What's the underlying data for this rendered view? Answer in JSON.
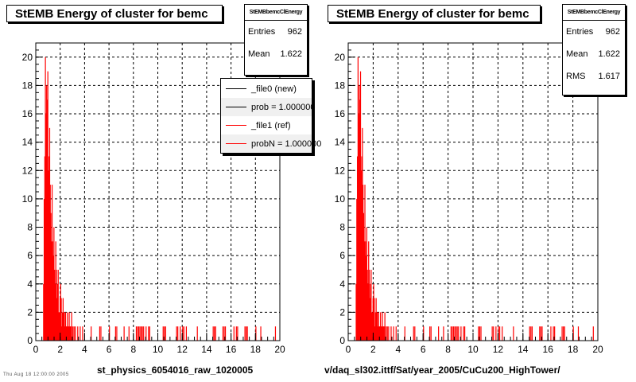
{
  "chart_data": [
    {
      "type": "bar",
      "title": "StEMB Energy of cluster for bemc",
      "xlabel": "st_physics_6054016_raw_1020005",
      "ylabel": "",
      "xlim": [
        0,
        20
      ],
      "ylim": [
        0,
        21
      ],
      "x_ticks": [
        "0",
        "2",
        "4",
        "6",
        "8",
        "10",
        "12",
        "14",
        "16",
        "18",
        "20"
      ],
      "y_ticks": [
        "0",
        "2",
        "4",
        "6",
        "8",
        "10",
        "12",
        "14",
        "16",
        "18",
        "20"
      ],
      "grid": true,
      "legend_position": "top-right",
      "stats": {
        "header": "StEMBbemcClEnergy",
        "rows": [
          {
            "label": "Entries",
            "value": "962"
          },
          {
            "label": "Mean",
            "value": "1.622"
          }
        ]
      },
      "legend": [
        {
          "label": "_file0 (new)",
          "color": "#000000"
        },
        {
          "label": "prob = 1.000000",
          "color": "#000000"
        },
        {
          "label": "_file1 (ref)",
          "color": "#ff0000"
        },
        {
          "label": "probN = 1.000000",
          "color": "#ff0000"
        }
      ],
      "bin_width": 0.05,
      "series": [
        {
          "name": "_file1 (ref)",
          "color": "#ff0000",
          "x": [
            0.6,
            0.65,
            0.7,
            0.75,
            0.8,
            0.85,
            0.9,
            0.95,
            1.0,
            1.05,
            1.1,
            1.15,
            1.2,
            1.25,
            1.3,
            1.35,
            1.4,
            1.45,
            1.5,
            1.55,
            1.6,
            1.65,
            1.7,
            1.75,
            1.8,
            1.85,
            1.9,
            1.95,
            2.0,
            2.05,
            2.1,
            2.15,
            2.2,
            2.25,
            2.3,
            2.35,
            2.4,
            2.45,
            2.5,
            2.55,
            2.6,
            2.65,
            2.7,
            2.75,
            2.8,
            2.85,
            2.9,
            3.0,
            3.1,
            3.2,
            3.4,
            3.6,
            3.8,
            4.5,
            5.2,
            5.3,
            6.0,
            6.5,
            6.6,
            7.2,
            7.6,
            8.2,
            8.3,
            8.4,
            8.5,
            8.6,
            8.7,
            8.8,
            9.0,
            9.2,
            9.3,
            10.4,
            10.5,
            10.6,
            11.5,
            11.6,
            11.8,
            12.0,
            12.1,
            12.3,
            13.2,
            14.5,
            14.6,
            14.7,
            15.3,
            15.4,
            15.5,
            16.2,
            16.4,
            16.5,
            17.1,
            17.2,
            17.3,
            18.0,
            18.4,
            19.6
          ],
          "values": [
            4,
            10,
            13,
            20,
            16,
            18,
            17,
            19,
            12,
            13,
            15,
            11,
            9,
            7,
            11,
            7,
            6,
            8,
            5,
            4,
            7,
            5,
            3,
            4,
            5,
            2,
            2,
            3,
            4,
            3,
            1,
            2,
            3,
            2,
            2,
            1,
            2,
            1,
            1,
            2,
            1,
            1,
            2,
            1,
            1,
            1,
            2,
            1,
            1,
            1,
            1,
            1,
            1,
            1,
            1,
            1,
            1,
            1,
            1,
            1,
            1,
            1,
            1,
            1,
            1,
            1,
            1,
            1,
            1,
            1,
            1,
            1,
            1,
            1,
            1,
            1,
            1,
            1,
            1,
            1,
            1,
            1,
            1,
            1,
            1,
            1,
            1,
            1,
            1,
            1,
            1,
            1,
            1,
            1,
            1,
            1
          ]
        }
      ]
    },
    {
      "type": "bar",
      "title": "StEMB Energy of cluster for bemc",
      "xlabel": "v/daq_sl302.ittf/Sat/year_2005/CuCu200_HighTower/",
      "ylabel": "",
      "xlim": [
        0,
        20
      ],
      "ylim": [
        0,
        21
      ],
      "x_ticks": [
        "0",
        "2",
        "4",
        "6",
        "8",
        "10",
        "12",
        "14",
        "16",
        "18",
        "20"
      ],
      "y_ticks": [
        "0",
        "2",
        "4",
        "6",
        "8",
        "10",
        "12",
        "14",
        "16",
        "18",
        "20"
      ],
      "grid": true,
      "stats": {
        "header": "StEMBbemcClEnergy",
        "rows": [
          {
            "label": "Entries",
            "value": "962"
          },
          {
            "label": "Mean",
            "value": "1.622"
          },
          {
            "label": "RMS",
            "value": "1.617"
          }
        ]
      },
      "bin_width": 0.05,
      "series": [
        {
          "name": "",
          "color": "#ff0000",
          "x": [
            0.6,
            0.65,
            0.7,
            0.75,
            0.8,
            0.85,
            0.9,
            0.95,
            1.0,
            1.05,
            1.1,
            1.15,
            1.2,
            1.25,
            1.3,
            1.35,
            1.4,
            1.45,
            1.5,
            1.55,
            1.6,
            1.65,
            1.7,
            1.75,
            1.8,
            1.85,
            1.9,
            1.95,
            2.0,
            2.05,
            2.1,
            2.15,
            2.2,
            2.25,
            2.3,
            2.35,
            2.4,
            2.45,
            2.5,
            2.55,
            2.6,
            2.65,
            2.7,
            2.75,
            2.8,
            2.85,
            2.9,
            3.0,
            3.1,
            3.2,
            3.4,
            3.6,
            3.8,
            4.5,
            5.2,
            5.3,
            6.0,
            6.5,
            6.6,
            7.2,
            7.6,
            8.2,
            8.3,
            8.4,
            8.5,
            8.6,
            8.7,
            8.8,
            9.0,
            9.2,
            9.3,
            10.4,
            10.5,
            10.6,
            11.5,
            11.6,
            11.8,
            12.0,
            12.1,
            12.3,
            13.2,
            14.5,
            14.6,
            14.7,
            15.3,
            15.4,
            15.5,
            16.2,
            16.4,
            16.5,
            17.1,
            17.2,
            17.3,
            18.0,
            18.4,
            19.6
          ],
          "values": [
            4,
            10,
            13,
            20,
            16,
            18,
            17,
            19,
            12,
            13,
            15,
            11,
            9,
            7,
            11,
            7,
            6,
            8,
            5,
            4,
            7,
            5,
            3,
            4,
            5,
            2,
            2,
            3,
            4,
            3,
            1,
            2,
            3,
            2,
            2,
            1,
            2,
            1,
            1,
            2,
            1,
            1,
            2,
            1,
            1,
            1,
            2,
            1,
            1,
            1,
            1,
            1,
            1,
            1,
            1,
            1,
            1,
            1,
            1,
            1,
            1,
            1,
            1,
            1,
            1,
            1,
            1,
            1,
            1,
            1,
            1,
            1,
            1,
            1,
            1,
            1,
            1,
            1,
            1,
            1,
            1,
            1,
            1,
            1,
            1,
            1,
            1,
            1,
            1,
            1,
            1,
            1,
            1,
            1,
            1,
            1
          ]
        }
      ]
    }
  ],
  "footer_note": "Thu Aug 18 12:00:00 2005"
}
